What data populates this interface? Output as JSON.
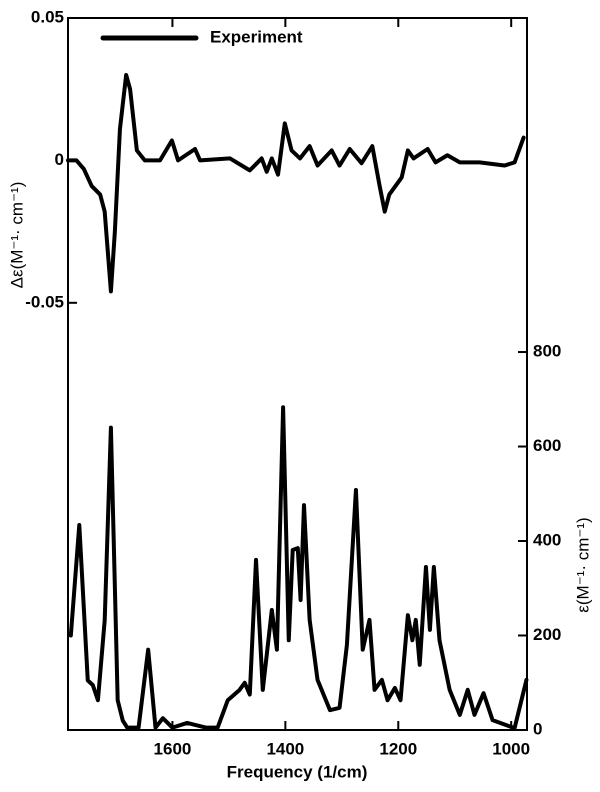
{
  "chart_data": {
    "type": "line",
    "xlabel": "Frequency (1/cm)",
    "ylabel": "Δε(M⁻¹· cm⁻¹)",
    "y2label": "ε(M⁻¹· cm⁻¹)",
    "xlim": [
      1785,
      972
    ],
    "xticks": [
      1600,
      1400,
      1200,
      1000
    ],
    "ylim": [
      -0.2,
      0.05
    ],
    "yticks": [
      0.05,
      0,
      -0.05
    ],
    "y2lim": [
      0,
      1507
    ],
    "y2ticks": [
      0,
      200,
      400,
      600,
      800
    ],
    "legend": "upper left",
    "series": [
      {
        "name": "Experiment",
        "color": "#000000",
        "x": [
          1785,
          1770,
          1757,
          1743,
          1728,
          1720,
          1709,
          1702,
          1693,
          1682,
          1675,
          1663,
          1649,
          1622,
          1601,
          1590,
          1560,
          1551,
          1498,
          1463,
          1442,
          1433,
          1424,
          1413,
          1401,
          1389,
          1374,
          1357,
          1343,
          1318,
          1304,
          1286,
          1265,
          1246,
          1233,
          1224,
          1216,
          1205,
          1194,
          1183,
          1173,
          1148,
          1134,
          1113,
          1091,
          1056,
          1012,
          994,
          978
        ],
        "values": [
          0,
          0,
          -0.003,
          -0.009,
          -0.012,
          -0.018,
          -0.046,
          -0.025,
          0.011,
          0.03,
          0.025,
          0.0035,
          0,
          0,
          0.007,
          0,
          0.004,
          0,
          0.0007,
          -0.0035,
          0.0007,
          -0.004,
          0.0007,
          -0.005,
          0.013,
          0.0035,
          0.0007,
          0.005,
          -0.0018,
          0.0035,
          -0.0018,
          0.004,
          -0.001,
          0.005,
          -0.009,
          -0.018,
          -0.012,
          -0.009,
          -0.006,
          0.0035,
          0.0007,
          0.004,
          -0.0007,
          0.0018,
          -0.0007,
          -0.0007,
          -0.0018,
          -0.0007,
          0.008
        ]
      },
      {
        "color": "#000000",
        "axis": "y2",
        "x": [
          1780,
          1765,
          1750,
          1741,
          1732,
          1720,
          1709,
          1697,
          1688,
          1680,
          1660,
          1643,
          1630,
          1617,
          1600,
          1574,
          1540,
          1520,
          1502,
          1481,
          1472,
          1463,
          1452,
          1440,
          1424,
          1415,
          1404,
          1394,
          1387,
          1378,
          1373,
          1367,
          1357,
          1343,
          1321,
          1304,
          1291,
          1275,
          1263,
          1251,
          1242,
          1229,
          1219,
          1206,
          1196,
          1183,
          1175,
          1169,
          1162,
          1151,
          1144,
          1137,
          1127,
          1109,
          1091,
          1077,
          1065,
          1049,
          1033,
          994,
          973
        ],
        "values": [
          200,
          434,
          105,
          95,
          63,
          232,
          640,
          63,
          20,
          5,
          5,
          170,
          5,
          25,
          5,
          15,
          5,
          5,
          63,
          85,
          100,
          75,
          360,
          85,
          254,
          170,
          683,
          190,
          381,
          385,
          275,
          476,
          233,
          106,
          42,
          47,
          180,
          508,
          170,
          233,
          85,
          106,
          63,
          89,
          63,
          243,
          190,
          233,
          138,
          345,
          212,
          345,
          190,
          85,
          32,
          85,
          32,
          78,
          21,
          4,
          106
        ]
      }
    ]
  }
}
